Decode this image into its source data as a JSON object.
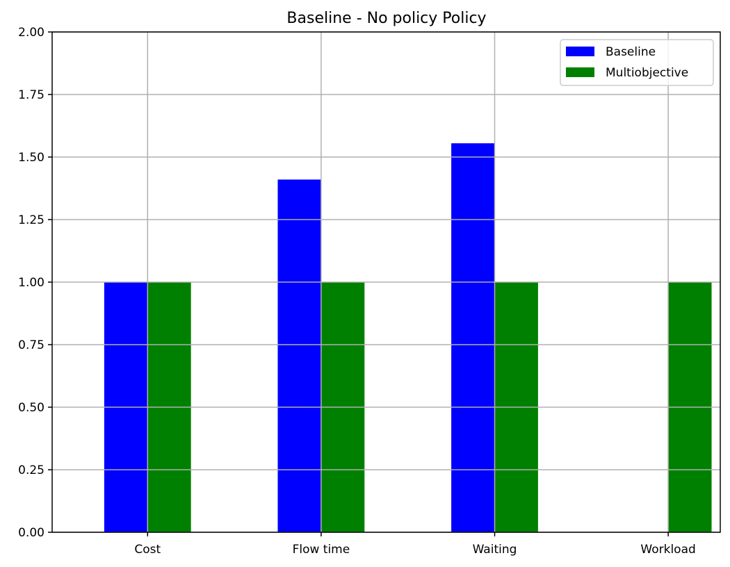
{
  "chart_data": {
    "type": "bar",
    "title": "Baseline - No policy Policy",
    "xlabel": "",
    "ylabel": "",
    "categories": [
      "Cost",
      "Flow time",
      "Waiting",
      "Workload"
    ],
    "series": [
      {
        "name": "Baseline",
        "color": "#0000ff",
        "values": [
          1.0,
          1.41,
          1.555,
          0.0
        ]
      },
      {
        "name": "Multiobjective",
        "color": "#008000",
        "values": [
          1.0,
          1.0,
          1.0,
          1.0
        ]
      }
    ],
    "ylim": [
      0,
      2.0
    ],
    "yticks": [
      "0.00",
      "0.25",
      "0.50",
      "0.75",
      "1.00",
      "1.25",
      "1.50",
      "1.75",
      "2.00"
    ],
    "grid": true,
    "legend_position": "top-right"
  }
}
